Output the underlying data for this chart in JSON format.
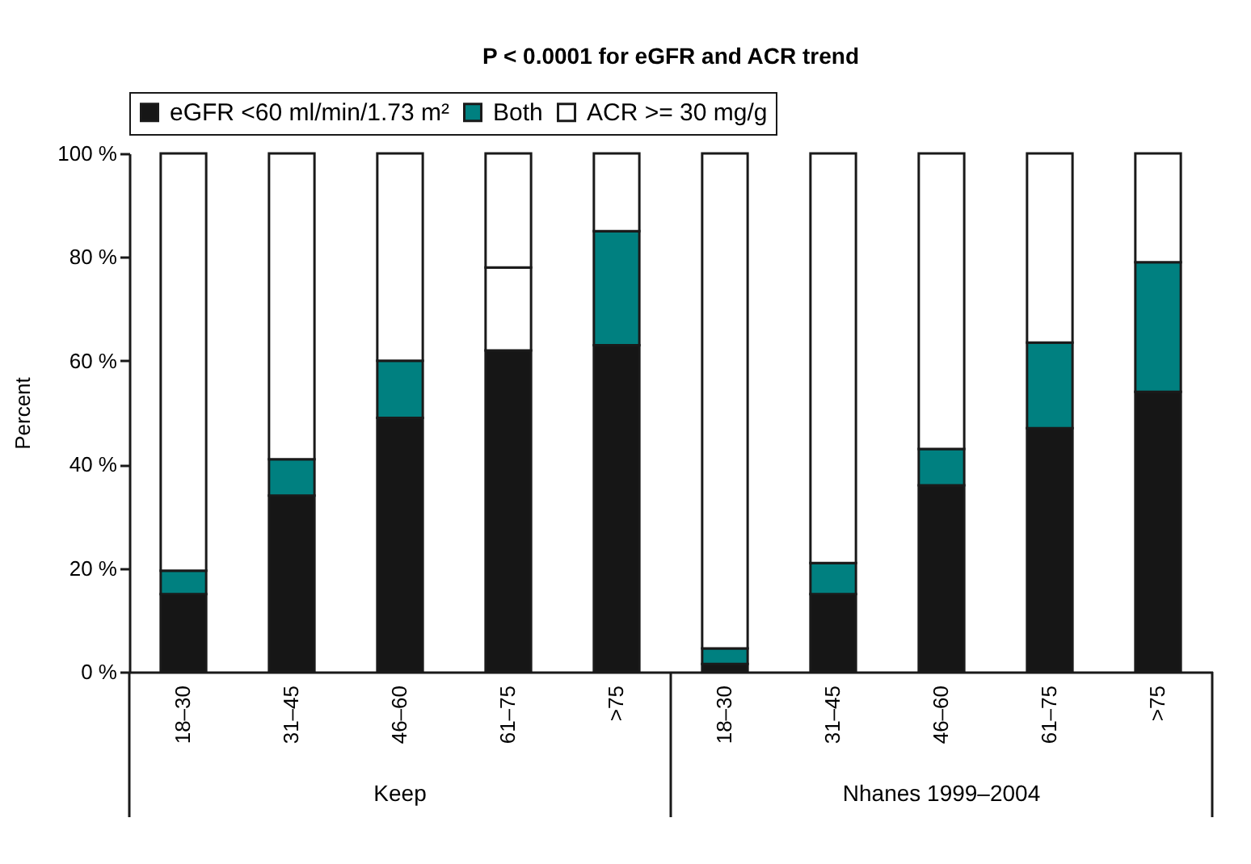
{
  "chart_data": {
    "type": "bar",
    "title": "P < 0.0001 for eGFR and ACR trend",
    "ylabel": "Percent",
    "categories": [
      "18–30",
      "31–45",
      "46–60",
      "61–75",
      ">75",
      "18–30",
      "31–45",
      "46–60",
      "61–75",
      ">75"
    ],
    "stacked": true,
    "series": [
      {
        "name": "eGFR <60 ml/min/1.73 m²",
        "color": "#161616",
        "values": [
          15,
          34,
          49,
          62,
          63,
          1.5,
          15,
          36,
          47,
          54
        ]
      },
      {
        "name": "Both",
        "color": "#008080",
        "colors": [
          "#008080",
          "#008080",
          "#008080",
          "#ffffff",
          "#008080",
          "#008080",
          "#008080",
          "#008080",
          "#008080",
          "#008080"
        ],
        "values": [
          4.5,
          7,
          11,
          16,
          22,
          3,
          6,
          7,
          16.5,
          25
        ]
      },
      {
        "name": "ACR >= 30 mg/g",
        "color": "#ffffff",
        "values": [
          80.5,
          59,
          40,
          22,
          15,
          95.5,
          79,
          57,
          36.5,
          21
        ]
      }
    ],
    "ylim": [
      0,
      100
    ],
    "yticks": [
      {
        "value": 0,
        "label": "0 %"
      },
      {
        "value": 20,
        "label": "20 %"
      },
      {
        "value": 40,
        "label": "40 %"
      },
      {
        "value": 60,
        "label": "60 %"
      },
      {
        "value": 80,
        "label": "80 %"
      },
      {
        "value": 100,
        "label": "100 %"
      }
    ],
    "grid": false,
    "legend": "top",
    "annotations": [
      "Keep",
      "Nhanes 1999–2004"
    ]
  }
}
